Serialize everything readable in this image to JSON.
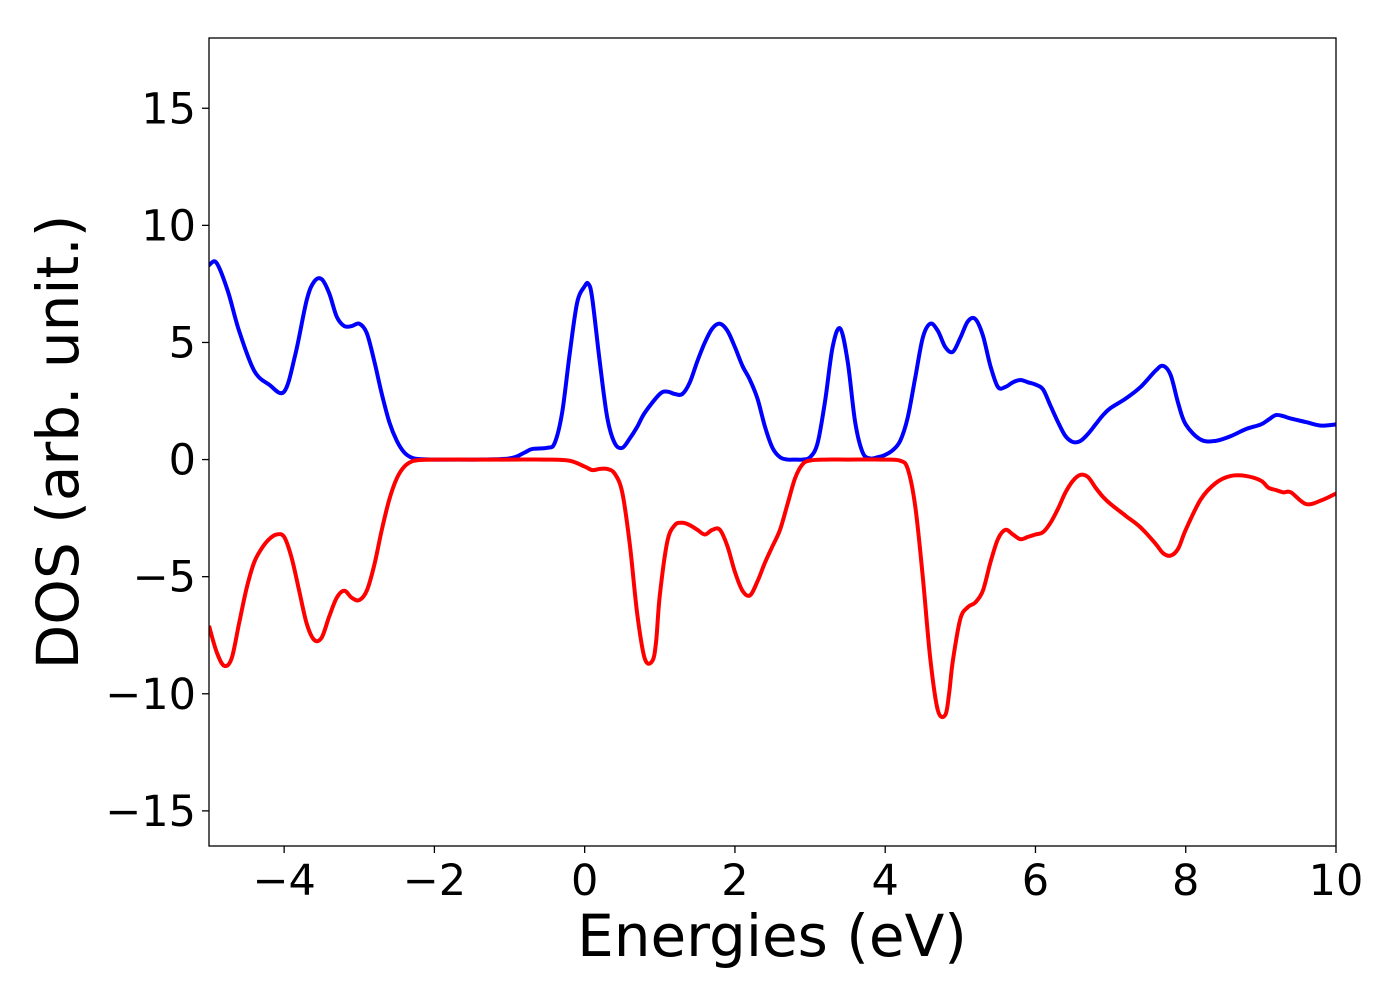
{
  "chart_data": {
    "type": "line",
    "xlabel": "Energies (eV)",
    "ylabel": "DOS (arb. unit.)",
    "xlim": [
      -5,
      10
    ],
    "ylim": [
      -16.5,
      18
    ],
    "xticks": [
      -4,
      -2,
      0,
      2,
      4,
      6,
      8,
      10
    ],
    "yticks": [
      -15,
      -10,
      -5,
      0,
      5,
      10,
      15
    ],
    "xtick_labels": [
      "−4",
      "−2",
      "0",
      "2",
      "4",
      "6",
      "8",
      "10"
    ],
    "ytick_labels": [
      "−15",
      "−10",
      "−5",
      "0",
      "5",
      "10",
      "15"
    ],
    "grid": false,
    "series": [
      {
        "color": "#0000ff",
        "x": [
          -5.0,
          -4.9,
          -4.75,
          -4.6,
          -4.4,
          -4.2,
          -4.0,
          -3.85,
          -3.7,
          -3.6,
          -3.5,
          -3.4,
          -3.3,
          -3.2,
          -3.1,
          -3.0,
          -2.9,
          -2.8,
          -2.7,
          -2.6,
          -2.5,
          -2.4,
          -2.3,
          -2.2,
          -2.0,
          -1.5,
          -1.0,
          -0.8,
          -0.7,
          -0.5,
          -0.4,
          -0.3,
          -0.2,
          -0.1,
          0.0,
          0.05,
          0.1,
          0.2,
          0.3,
          0.4,
          0.5,
          0.6,
          0.7,
          0.8,
          1.0,
          1.1,
          1.2,
          1.3,
          1.4,
          1.5,
          1.6,
          1.7,
          1.8,
          1.9,
          2.0,
          2.1,
          2.2,
          2.3,
          2.4,
          2.5,
          2.6,
          2.7,
          2.8,
          2.9,
          3.0,
          3.1,
          3.2,
          3.3,
          3.4,
          3.5,
          3.6,
          3.7,
          3.8,
          3.9,
          4.0,
          4.1,
          4.2,
          4.3,
          4.4,
          4.5,
          4.6,
          4.7,
          4.8,
          4.9,
          5.0,
          5.1,
          5.2,
          5.3,
          5.4,
          5.5,
          5.6,
          5.7,
          5.8,
          5.9,
          6.0,
          6.1,
          6.2,
          6.3,
          6.4,
          6.5,
          6.6,
          6.7,
          6.8,
          6.9,
          7.0,
          7.2,
          7.4,
          7.6,
          7.7,
          7.8,
          7.9,
          8.0,
          8.2,
          8.4,
          8.6,
          8.8,
          9.0,
          9.1,
          9.2,
          9.3,
          9.4,
          9.6,
          9.8,
          10.0
        ],
        "y": [
          8.3,
          8.4,
          7.2,
          5.5,
          3.8,
          3.2,
          2.9,
          4.5,
          6.8,
          7.6,
          7.7,
          7.1,
          6.1,
          5.7,
          5.7,
          5.8,
          5.4,
          4.2,
          2.8,
          1.6,
          0.8,
          0.3,
          0.08,
          0.02,
          0.0,
          0.0,
          0.05,
          0.3,
          0.45,
          0.5,
          0.7,
          2.0,
          4.5,
          6.7,
          7.4,
          7.5,
          6.9,
          4.2,
          1.8,
          0.7,
          0.5,
          0.9,
          1.4,
          2.0,
          2.8,
          2.9,
          2.8,
          2.8,
          3.3,
          4.2,
          5.0,
          5.6,
          5.8,
          5.5,
          4.8,
          4.0,
          3.4,
          2.6,
          1.4,
          0.5,
          0.1,
          0.0,
          0.0,
          0.0,
          0.1,
          0.7,
          2.5,
          4.8,
          5.6,
          4.2,
          1.6,
          0.3,
          0.05,
          0.1,
          0.2,
          0.4,
          0.8,
          1.8,
          3.5,
          5.2,
          5.8,
          5.5,
          4.8,
          4.6,
          5.2,
          5.9,
          6.0,
          5.3,
          4.0,
          3.1,
          3.1,
          3.3,
          3.4,
          3.3,
          3.2,
          3.0,
          2.3,
          1.6,
          1.0,
          0.75,
          0.8,
          1.1,
          1.5,
          1.9,
          2.2,
          2.6,
          3.1,
          3.8,
          4.0,
          3.6,
          2.4,
          1.5,
          0.85,
          0.8,
          1.0,
          1.3,
          1.5,
          1.7,
          1.9,
          1.85,
          1.75,
          1.6,
          1.45,
          1.5
        ]
      },
      {
        "color": "#ff0000",
        "x": [
          -5.0,
          -4.9,
          -4.8,
          -4.7,
          -4.6,
          -4.5,
          -4.4,
          -4.3,
          -4.2,
          -4.1,
          -4.0,
          -3.9,
          -3.8,
          -3.7,
          -3.6,
          -3.5,
          -3.4,
          -3.3,
          -3.2,
          -3.1,
          -3.0,
          -2.9,
          -2.8,
          -2.7,
          -2.6,
          -2.5,
          -2.4,
          -2.3,
          -2.2,
          -2.0,
          -1.5,
          -1.0,
          -0.5,
          -0.2,
          0.0,
          0.1,
          0.2,
          0.3,
          0.4,
          0.5,
          0.6,
          0.7,
          0.8,
          0.9,
          0.95,
          1.0,
          1.1,
          1.2,
          1.3,
          1.4,
          1.5,
          1.6,
          1.7,
          1.8,
          1.9,
          2.0,
          2.1,
          2.2,
          2.3,
          2.4,
          2.5,
          2.6,
          2.7,
          2.8,
          2.9,
          3.0,
          3.2,
          3.5,
          4.0,
          4.2,
          4.3,
          4.4,
          4.5,
          4.6,
          4.7,
          4.8,
          4.85,
          4.9,
          5.0,
          5.1,
          5.2,
          5.3,
          5.4,
          5.5,
          5.6,
          5.7,
          5.8,
          5.9,
          6.0,
          6.1,
          6.2,
          6.3,
          6.4,
          6.5,
          6.6,
          6.7,
          6.8,
          6.9,
          7.0,
          7.2,
          7.4,
          7.6,
          7.7,
          7.8,
          7.9,
          8.0,
          8.2,
          8.4,
          8.6,
          8.8,
          9.0,
          9.1,
          9.2,
          9.3,
          9.4,
          9.6,
          9.8,
          10.0
        ],
        "y": [
          -7.1,
          -8.2,
          -8.8,
          -8.5,
          -7.0,
          -5.5,
          -4.4,
          -3.8,
          -3.4,
          -3.2,
          -3.3,
          -4.2,
          -5.6,
          -7.0,
          -7.7,
          -7.6,
          -6.7,
          -5.9,
          -5.6,
          -5.9,
          -6.0,
          -5.6,
          -4.5,
          -3.0,
          -1.7,
          -0.8,
          -0.3,
          -0.08,
          -0.02,
          0.0,
          0.0,
          0.0,
          0.0,
          -0.05,
          -0.3,
          -0.45,
          -0.4,
          -0.4,
          -0.6,
          -1.4,
          -3.6,
          -6.6,
          -8.5,
          -8.6,
          -7.8,
          -5.8,
          -3.5,
          -2.8,
          -2.7,
          -2.8,
          -3.0,
          -3.2,
          -3.0,
          -3.0,
          -3.7,
          -4.8,
          -5.6,
          -5.8,
          -5.2,
          -4.4,
          -3.7,
          -3.0,
          -1.9,
          -0.8,
          -0.2,
          -0.04,
          0.0,
          0.0,
          0.0,
          -0.05,
          -0.4,
          -2.0,
          -5.0,
          -8.5,
          -10.7,
          -10.9,
          -10.0,
          -8.6,
          -6.8,
          -6.3,
          -6.1,
          -5.6,
          -4.4,
          -3.4,
          -3.0,
          -3.2,
          -3.4,
          -3.3,
          -3.2,
          -3.1,
          -2.7,
          -2.1,
          -1.4,
          -0.9,
          -0.65,
          -0.75,
          -1.2,
          -1.6,
          -1.9,
          -2.4,
          -2.9,
          -3.6,
          -4.0,
          -4.1,
          -3.8,
          -3.0,
          -1.7,
          -1.0,
          -0.7,
          -0.7,
          -0.9,
          -1.2,
          -1.3,
          -1.4,
          -1.4,
          -1.9,
          -1.75,
          -1.45
        ]
      }
    ]
  }
}
